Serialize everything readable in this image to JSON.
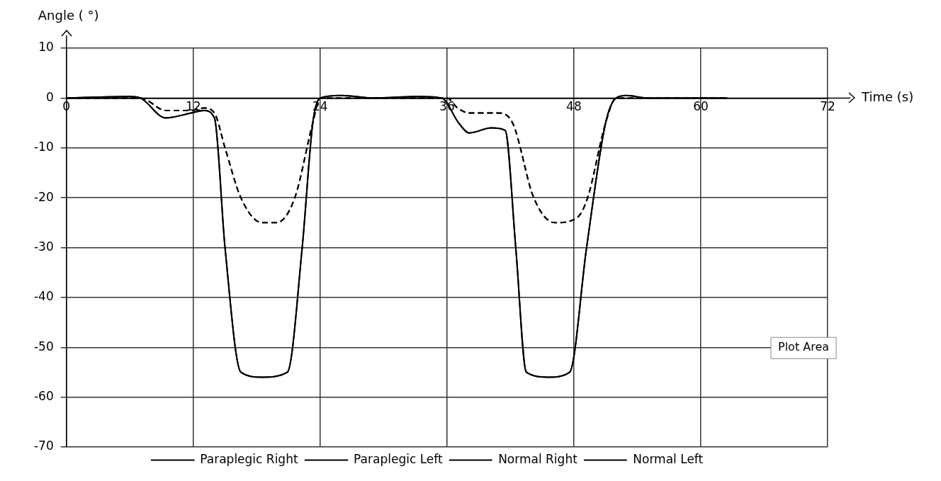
{
  "chart_data": {
    "type": "line",
    "xlabel": "Time (s)",
    "ylabel": "Angle ( °)",
    "x": [
      0,
      6,
      7,
      9.4,
      11.8,
      13,
      14,
      15,
      16.5,
      18.5,
      20.9,
      22.3,
      23.3,
      24,
      26,
      29,
      33.4,
      35.5,
      37.1,
      38.1,
      40.2,
      41.5,
      42.5,
      43.5,
      45.6,
      47.6,
      49.2,
      51,
      52,
      53,
      55,
      62.5
    ],
    "series": [
      {
        "name": "Paraplegic Right",
        "color": "#000000",
        "line_style": "solid",
        "values": [
          0,
          0.3,
          0,
          -4,
          -3,
          -2.5,
          -4,
          -30,
          -55,
          -56,
          -55,
          -30,
          -5,
          0,
          0.5,
          0,
          0.3,
          0,
          -5,
          -7,
          -6,
          -6.5,
          -30,
          -55,
          -56,
          -55,
          -30,
          -5,
          0,
          0.5,
          0,
          0
        ]
      },
      {
        "name": "Paraplegic Left",
        "color": "#000000",
        "line_style": "solid",
        "values": [
          0,
          0.3,
          0,
          -4,
          -3,
          -2.5,
          -4,
          -30,
          -55,
          -56,
          -55,
          -30,
          -5,
          0,
          0.5,
          0,
          0.3,
          0,
          -5,
          -7,
          -6,
          -6.5,
          -30,
          -55,
          -56,
          -55,
          -30,
          -5,
          0,
          0.5,
          0,
          0
        ]
      },
      {
        "name": "Normal Right",
        "color": "#000000",
        "line_style": "dashed",
        "x": [
          0,
          6,
          7,
          9.4,
          11.8,
          13,
          14,
          15,
          16.5,
          18.5,
          19.9,
          21.6,
          23.3,
          24,
          26,
          36,
          37,
          38.1,
          40.8,
          42.2,
          44.2,
          46.2,
          48.3,
          49.3,
          51,
          52,
          62.5
        ],
        "values": [
          0,
          0,
          0,
          -2.5,
          -2.5,
          -2,
          -3,
          -10,
          -20,
          -25,
          -25,
          -20,
          -5,
          0,
          0,
          0,
          -2,
          -3,
          -3,
          -5,
          -20,
          -25,
          -24,
          -20,
          -5,
          0,
          0
        ]
      },
      {
        "name": "Normal Left",
        "color": "#000000",
        "line_style": "dashed",
        "x": [
          0,
          6,
          7,
          9.4,
          11.8,
          13,
          14,
          15,
          16.5,
          18.5,
          19.9,
          21.6,
          23.3,
          24,
          26,
          36,
          37,
          38.1,
          40.8,
          42.2,
          44.2,
          46.2,
          48.3,
          49.3,
          51,
          52,
          62.5
        ],
        "values": [
          0,
          0,
          0,
          -2.5,
          -2.5,
          -2,
          -3,
          -10,
          -20,
          -25,
          -25,
          -20,
          -5,
          0,
          0,
          0,
          -2,
          -3,
          -3,
          -5,
          -20,
          -25,
          -24,
          -20,
          -5,
          0,
          0
        ]
      }
    ],
    "xlim": [
      0,
      72
    ],
    "xticks": [
      0,
      12,
      24,
      36,
      48,
      60,
      72
    ],
    "ylim": [
      -70,
      10
    ],
    "yticks": [
      -70,
      -60,
      -50,
      -40,
      -30,
      -20,
      -10,
      0,
      10
    ],
    "grid": true,
    "legend": "bottom",
    "marker": "none",
    "annotations": [
      "Plot Area"
    ]
  }
}
